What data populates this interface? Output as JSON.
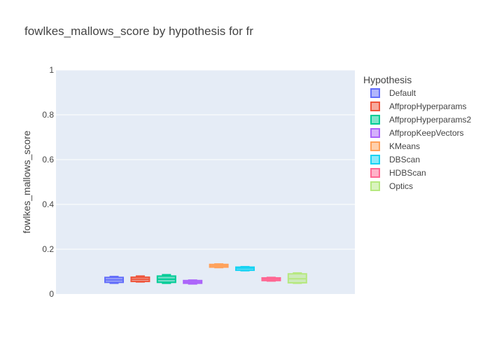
{
  "chart_data": {
    "type": "box",
    "title": "fowlkes_mallows_score by hypothesis for fr",
    "xlabel": "",
    "ylabel": "fowlkes_mallows_score",
    "ylim": [
      0,
      1
    ],
    "yticks": [
      "0",
      "0.2",
      "0.4",
      "0.6",
      "0.8",
      "1"
    ],
    "grid": true,
    "legend_title": "Hypothesis",
    "legend_placement": "right",
    "series": [
      {
        "name": "Default",
        "color": "#636efa",
        "min": 0.048,
        "q1": 0.052,
        "median": 0.063,
        "q3": 0.074,
        "max": 0.078
      },
      {
        "name": "AffpropHyperparams",
        "color": "#ef553b",
        "min": 0.054,
        "q1": 0.056,
        "median": 0.066,
        "q3": 0.075,
        "max": 0.08
      },
      {
        "name": "AffpropHyperparams2",
        "color": "#00cc96",
        "min": 0.048,
        "q1": 0.052,
        "median": 0.066,
        "q3": 0.08,
        "max": 0.086
      },
      {
        "name": "AffpropKeepVectors",
        "color": "#ab63fa",
        "min": 0.045,
        "q1": 0.048,
        "median": 0.054,
        "q3": 0.06,
        "max": 0.062
      },
      {
        "name": "KMeans",
        "color": "#ffa15a",
        "min": 0.118,
        "q1": 0.12,
        "median": 0.126,
        "q3": 0.132,
        "max": 0.134
      },
      {
        "name": "DBScan",
        "color": "#19d3f3",
        "min": 0.104,
        "q1": 0.106,
        "median": 0.115,
        "q3": 0.12,
        "max": 0.122
      },
      {
        "name": "HDBScan",
        "color": "#ff6692",
        "min": 0.058,
        "q1": 0.06,
        "median": 0.066,
        "q3": 0.072,
        "max": 0.074
      },
      {
        "name": "Optics",
        "color": "#b6e880",
        "min": 0.048,
        "q1": 0.05,
        "median": 0.068,
        "q3": 0.09,
        "max": 0.094
      }
    ]
  }
}
